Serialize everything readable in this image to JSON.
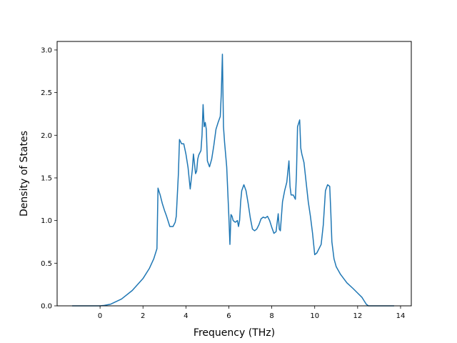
{
  "chart_data": {
    "type": "line",
    "title": "",
    "xlabel": "Frequency (THz)",
    "ylabel": "Density of States",
    "xlim": [
      -2.0,
      14.5
    ],
    "ylim": [
      0.0,
      3.1
    ],
    "xticks": [
      0,
      2,
      4,
      6,
      8,
      10,
      12,
      14
    ],
    "yticks": [
      0.0,
      0.5,
      1.0,
      1.5,
      2.0,
      2.5,
      3.0
    ],
    "xtick_labels": [
      "0",
      "2",
      "4",
      "6",
      "8",
      "10",
      "12",
      "14"
    ],
    "ytick_labels": [
      "0.0",
      "0.5",
      "1.0",
      "1.5",
      "2.0",
      "2.5",
      "3.0"
    ],
    "grid": false,
    "legend": "none",
    "series_color": "#1f77b4",
    "series": [
      {
        "x": [
          -1.3,
          0.0,
          0.2,
          0.5,
          1.0,
          1.5,
          2.0,
          2.3,
          2.5,
          2.65,
          2.7,
          2.8,
          2.9,
          3.0,
          3.1,
          3.25,
          3.4,
          3.5,
          3.55,
          3.65,
          3.7,
          3.8,
          3.9,
          4.0,
          4.1,
          4.2,
          4.3,
          4.35,
          4.45,
          4.5,
          4.55,
          4.6,
          4.7,
          4.75,
          4.8,
          4.85,
          4.9,
          4.95,
          5.0,
          5.1,
          5.2,
          5.3,
          5.4,
          5.5,
          5.6,
          5.65,
          5.7,
          5.75,
          5.8,
          5.9,
          6.0,
          6.05,
          6.1,
          6.15,
          6.2,
          6.3,
          6.4,
          6.45,
          6.5,
          6.55,
          6.6,
          6.7,
          6.8,
          6.9,
          7.0,
          7.1,
          7.2,
          7.3,
          7.4,
          7.5,
          7.6,
          7.7,
          7.8,
          7.9,
          8.0,
          8.1,
          8.2,
          8.3,
          8.35,
          8.4,
          8.5,
          8.6,
          8.7,
          8.8,
          8.85,
          8.9,
          9.0,
          9.1,
          9.15,
          9.2,
          9.3,
          9.35,
          9.4,
          9.5,
          9.6,
          9.7,
          9.8,
          9.9,
          10.0,
          10.1,
          10.2,
          10.3,
          10.4,
          10.5,
          10.6,
          10.7,
          10.75,
          10.8,
          10.85,
          10.9,
          11.0,
          11.2,
          11.5,
          11.8,
          12.0,
          12.2,
          12.3,
          12.4,
          12.5,
          13.7
        ],
        "y": [
          0.0,
          0.0,
          0.005,
          0.02,
          0.08,
          0.18,
          0.32,
          0.44,
          0.55,
          0.67,
          1.38,
          1.3,
          1.2,
          1.12,
          1.05,
          0.93,
          0.93,
          0.98,
          1.05,
          1.55,
          1.95,
          1.9,
          1.9,
          1.78,
          1.62,
          1.37,
          1.6,
          1.78,
          1.55,
          1.58,
          1.72,
          1.77,
          1.82,
          2.0,
          2.36,
          2.1,
          2.15,
          2.07,
          1.7,
          1.63,
          1.72,
          1.88,
          2.07,
          2.15,
          2.22,
          2.5,
          2.95,
          2.1,
          1.92,
          1.63,
          1.05,
          0.72,
          1.07,
          1.05,
          1.0,
          0.98,
          1.0,
          0.93,
          1.0,
          1.22,
          1.35,
          1.42,
          1.35,
          1.2,
          1.03,
          0.9,
          0.88,
          0.9,
          0.95,
          1.02,
          1.04,
          1.03,
          1.05,
          1.0,
          0.92,
          0.85,
          0.87,
          1.08,
          0.9,
          0.88,
          1.22,
          1.35,
          1.45,
          1.7,
          1.4,
          1.3,
          1.3,
          1.25,
          1.55,
          2.1,
          2.18,
          1.85,
          1.78,
          1.68,
          1.45,
          1.22,
          1.05,
          0.85,
          0.6,
          0.62,
          0.67,
          0.72,
          0.95,
          1.35,
          1.42,
          1.4,
          1.1,
          0.75,
          0.65,
          0.55,
          0.46,
          0.37,
          0.27,
          0.2,
          0.15,
          0.1,
          0.06,
          0.02,
          0.0,
          0.0
        ]
      }
    ]
  }
}
